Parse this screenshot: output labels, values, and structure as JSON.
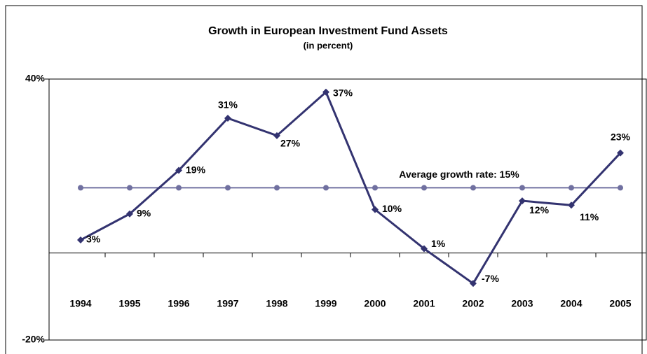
{
  "chart_data": {
    "type": "line",
    "title": "Growth in European Investment Fund Assets",
    "subtitle": "(in percent)",
    "categories": [
      "1994",
      "1995",
      "1996",
      "1997",
      "1998",
      "1999",
      "2000",
      "2001",
      "2002",
      "2003",
      "2004",
      "2005"
    ],
    "series": [
      {
        "name": "Growth",
        "color": "#333370",
        "values": [
          3,
          9,
          19,
          31,
          27,
          37,
          10,
          1,
          -7,
          12,
          11,
          23
        ],
        "value_labels": [
          "3%",
          "9%",
          "19%",
          "31%",
          "27%",
          "37%",
          "10%",
          "1%",
          "-7%",
          "12%",
          "11%",
          "23%"
        ]
      },
      {
        "name": "Average growth rate",
        "color": "#7070a0",
        "values": [
          15,
          15,
          15,
          15,
          15,
          15,
          15,
          15,
          15,
          15,
          15,
          15
        ]
      }
    ],
    "annotations": [
      "Average growth rate: 15%"
    ],
    "ylim": [
      -20,
      40
    ],
    "yticks": [
      {
        "value": -20,
        "label": "-20%"
      },
      {
        "value": 40,
        "label": "40%"
      }
    ]
  }
}
